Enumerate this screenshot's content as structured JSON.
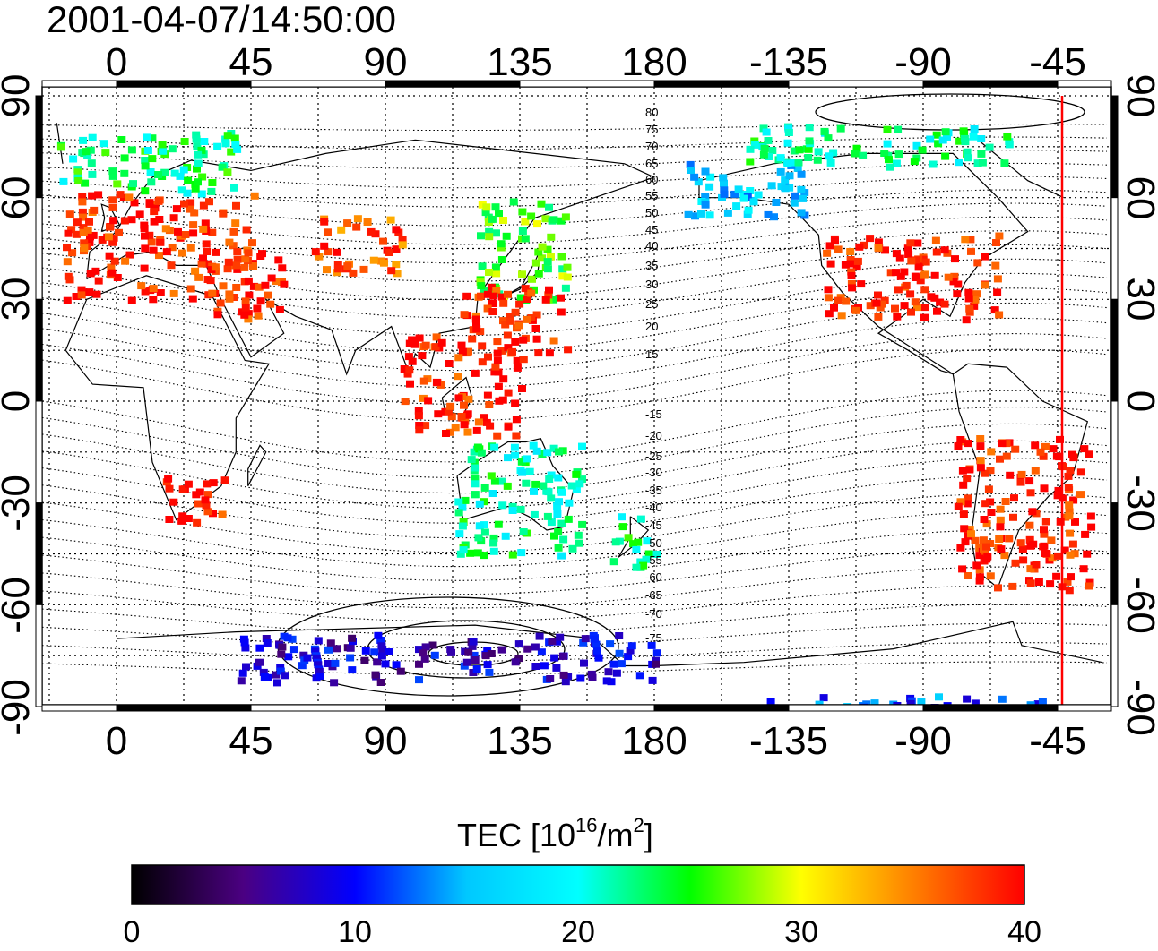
{
  "header": {
    "timestamp": "2001-04-07/14:50:00"
  },
  "axes": {
    "top_lon_ticks": [
      "0",
      "45",
      "90",
      "135",
      "180",
      "-135",
      "-90",
      "-45"
    ],
    "bottom_lon_ticks": [
      "0",
      "45",
      "90",
      "135",
      "180",
      "-135",
      "-90",
      "-45"
    ],
    "lat_ticks": [
      "90",
      "60",
      "30",
      "0",
      "-30",
      "-60",
      "-90"
    ]
  },
  "contour_labels": {
    "north": [
      "80",
      "75",
      "70",
      "65",
      "60",
      "55",
      "50",
      "45",
      "40",
      "35",
      "30",
      "25",
      "20",
      "15"
    ],
    "south": [
      "-15",
      "-20",
      "-25",
      "-30",
      "-35",
      "-40",
      "-45",
      "-50",
      "-55",
      "-60",
      "-65",
      "-70",
      "-75"
    ]
  },
  "colorbar": {
    "title_prefix": "TEC  [10",
    "title_exp1": "16",
    "title_mid": "/m",
    "title_exp2": "2",
    "title_suffix": "]",
    "ticks": [
      "0",
      "10",
      "20",
      "30",
      "40"
    ],
    "range": [
      0,
      40
    ],
    "stops": [
      "#000000",
      "#4b0082",
      "#0000ff",
      "#00c8ff",
      "#00ffff",
      "#00ff00",
      "#ffff00",
      "#ff8000",
      "#ff0000"
    ]
  },
  "colors": {
    "terminator_line": "#ff0000",
    "land_outline": "#000000"
  },
  "tec_patches": [
    {
      "region": "Europe",
      "lon": [
        -18,
        45
      ],
      "lat": [
        30,
        62
      ],
      "tec": 39
    },
    {
      "region": "Scandinavia",
      "lon": [
        -20,
        40
      ],
      "lat": [
        62,
        80
      ],
      "tec": 23
    },
    {
      "region": "Middle East",
      "lon": [
        30,
        55
      ],
      "lat": [
        25,
        45
      ],
      "tec": 39
    },
    {
      "region": "Central Asia",
      "lon": [
        65,
        95
      ],
      "lat": [
        38,
        55
      ],
      "tec": 37
    },
    {
      "region": "Japan",
      "lon": [
        120,
        150
      ],
      "lat": [
        30,
        60
      ],
      "tec": 26
    },
    {
      "region": "East China",
      "lon": [
        115,
        150
      ],
      "lat": [
        15,
        35
      ],
      "tec": 39
    },
    {
      "region": "Indonesia",
      "lon": [
        95,
        135
      ],
      "lat": [
        -10,
        20
      ],
      "tec": 39
    },
    {
      "region": "Australia",
      "lon": [
        113,
        155
      ],
      "lat": [
        -45,
        -12
      ],
      "tec": 22
    },
    {
      "region": "New Zealand",
      "lon": [
        165,
        180
      ],
      "lat": [
        -48,
        -33
      ],
      "tec": 23
    },
    {
      "region": "South Africa",
      "lon": [
        15,
        35
      ],
      "lat": [
        -35,
        -20
      ],
      "tec": 39
    },
    {
      "region": "Alaska",
      "lon": [
        -170,
        -130
      ],
      "lat": [
        55,
        72
      ],
      "tec": 16
    },
    {
      "region": "Canada",
      "lon": [
        -150,
        -60
      ],
      "lat": [
        70,
        82
      ],
      "tec": 22
    },
    {
      "region": "USA",
      "lon": [
        -125,
        -65
      ],
      "lat": [
        25,
        50
      ],
      "tec": 39
    },
    {
      "region": "South America",
      "lon": [
        -80,
        -35
      ],
      "lat": [
        -55,
        -10
      ],
      "tec": 39
    },
    {
      "region": "Antarctica East",
      "lon": [
        40,
        180
      ],
      "lat": [
        -82,
        -68
      ],
      "tec": 8
    },
    {
      "region": "Antarctica West",
      "lon": [
        -150,
        -40
      ],
      "lat": [
        -90,
        -86
      ],
      "tec": 12
    }
  ]
}
